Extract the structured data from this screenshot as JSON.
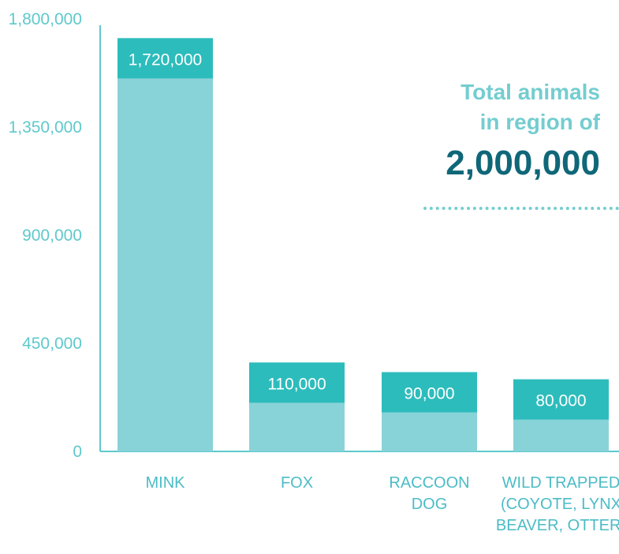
{
  "chart_data": {
    "type": "bar",
    "categories": [
      "MINK",
      "FOX",
      "RACCOON DOG",
      "WILD TRAPPED (COYOTE, LYNX BEAVER, OTTER)"
    ],
    "category_lines": [
      [
        "MINK"
      ],
      [
        "FOX"
      ],
      [
        "RACCOON",
        "DOG"
      ],
      [
        "WILD TRAPPED",
        "(COYOTE, LYNX",
        "BEAVER, OTTER)"
      ]
    ],
    "values": [
      1720000,
      370000,
      330000,
      300000
    ],
    "highlight_labels": [
      "1,720,000",
      "110,000",
      "90,000",
      "80,000"
    ],
    "highlight_values": [
      1720000,
      110000,
      90000,
      80000
    ],
    "ylim": [
      0,
      1800000
    ],
    "yticks": [
      0,
      450000,
      900000,
      1350000,
      1800000
    ],
    "ytick_labels": [
      "0",
      "450,000",
      "900,000",
      "1,350,000",
      "1,800,000"
    ],
    "grid": false,
    "colors": {
      "bar_light": "#88d3d8",
      "bar_top": "#2dbcbc",
      "axis": "#5ec9cc"
    }
  },
  "callout": {
    "line1": "Total animals",
    "line2": "in region of",
    "total": "2,000,000"
  }
}
